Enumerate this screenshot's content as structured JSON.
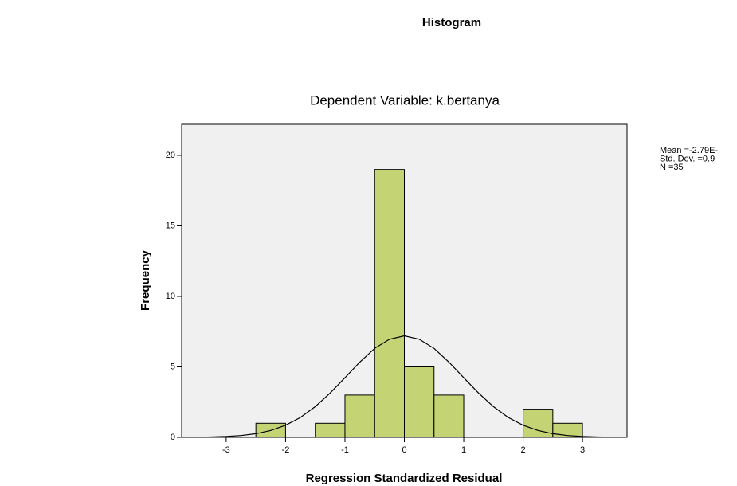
{
  "chart_data": {
    "type": "histogram",
    "title": "Histogram",
    "subtitle": "Dependent Variable: k.bertanya",
    "x_label": "Regression Standardized Residual",
    "y_label": "Frequency",
    "bins": [
      -2.5,
      -2,
      -1.5,
      -1,
      -0.5,
      0,
      0.5,
      1,
      1.5,
      2,
      2.5,
      3
    ],
    "values": [
      1,
      0,
      1,
      3,
      19,
      5,
      3,
      0,
      0,
      2,
      1
    ],
    "color": "#b5c94a",
    "plot_background": "#f0f0f0",
    "xlim": [
      -3.75,
      3.75
    ],
    "ylim": [
      0,
      22.2
    ],
    "xticks": [
      -3,
      -2,
      -1,
      0,
      1,
      2,
      3
    ],
    "yticks": [
      0,
      5,
      10,
      15,
      20
    ],
    "normal_curve": {
      "x": [
        -3.5,
        -3.25,
        -3,
        -2.75,
        -2.5,
        -2.25,
        -2,
        -1.75,
        -1.5,
        -1.25,
        -1,
        -0.75,
        -0.5,
        -0.25,
        0,
        0.25,
        0.5,
        0.75,
        1,
        1.25,
        1.5,
        1.75,
        2,
        2.25,
        2.5,
        2.75,
        3,
        3.25,
        3.5
      ],
      "values": [
        0.01,
        0.03,
        0.06,
        0.13,
        0.26,
        0.49,
        0.86,
        1.41,
        2.18,
        3.14,
        4.23,
        5.34,
        6.31,
        6.96,
        7.2,
        6.96,
        6.31,
        5.34,
        4.23,
        3.14,
        2.18,
        1.41,
        0.86,
        0.49,
        0.26,
        0.13,
        0.06,
        0.03,
        0.01
      ]
    },
    "stats": [
      "Mean =-2.79E-",
      "Std. Dev. =0.9",
      "N =35"
    ]
  }
}
